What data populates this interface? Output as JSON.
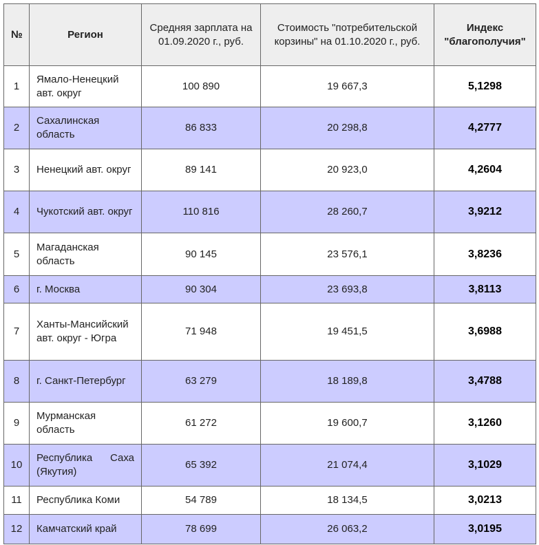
{
  "table": {
    "header": [
      "№",
      "Регион",
      "Средняя зарплата на 01.09.2020 г., руб.",
      "Стоимость \"потребительской корзины\" на 01.10.2020 г., руб.",
      "Индекс \"благополучия\""
    ],
    "rows": [
      [
        "1",
        "Ямало-Ненецкий авт. округ",
        "100 890",
        "19 667,3",
        "5,1298"
      ],
      [
        "2",
        "Сахалинская область",
        "86 833",
        "20 298,8",
        "4,2777"
      ],
      [
        "3",
        "Ненецкий авт. округ",
        "89 141",
        "20 923,0",
        "4,2604"
      ],
      [
        "4",
        "Чукотский авт. округ",
        "110 816",
        "28 260,7",
        "3,9212"
      ],
      [
        "5",
        "Магаданская область",
        "90 145",
        "23 576,1",
        "3,8236"
      ],
      [
        "6",
        "г. Москва",
        "90 304",
        "23 693,8",
        "3,8113"
      ],
      [
        "7",
        "Ханты-Мансийский авт. округ - Югра",
        "71 948",
        "19 451,5",
        "3,6988"
      ],
      [
        "8",
        "г. Санкт-Петербург",
        "63 279",
        "18 189,8",
        "3,4788"
      ],
      [
        "9",
        "Мурманская область",
        "61 272",
        "19 600,7",
        "3,1260"
      ],
      [
        "10",
        "Республика Саха (Якутия)",
        "65 392",
        "21 074,4",
        "3,1029"
      ],
      [
        "11",
        "Республика Коми",
        "54 789",
        "18 134,5",
        "3,0213"
      ],
      [
        "12",
        "Камчатский край",
        "78 699",
        "26 063,2",
        "3,0195"
      ]
    ]
  }
}
